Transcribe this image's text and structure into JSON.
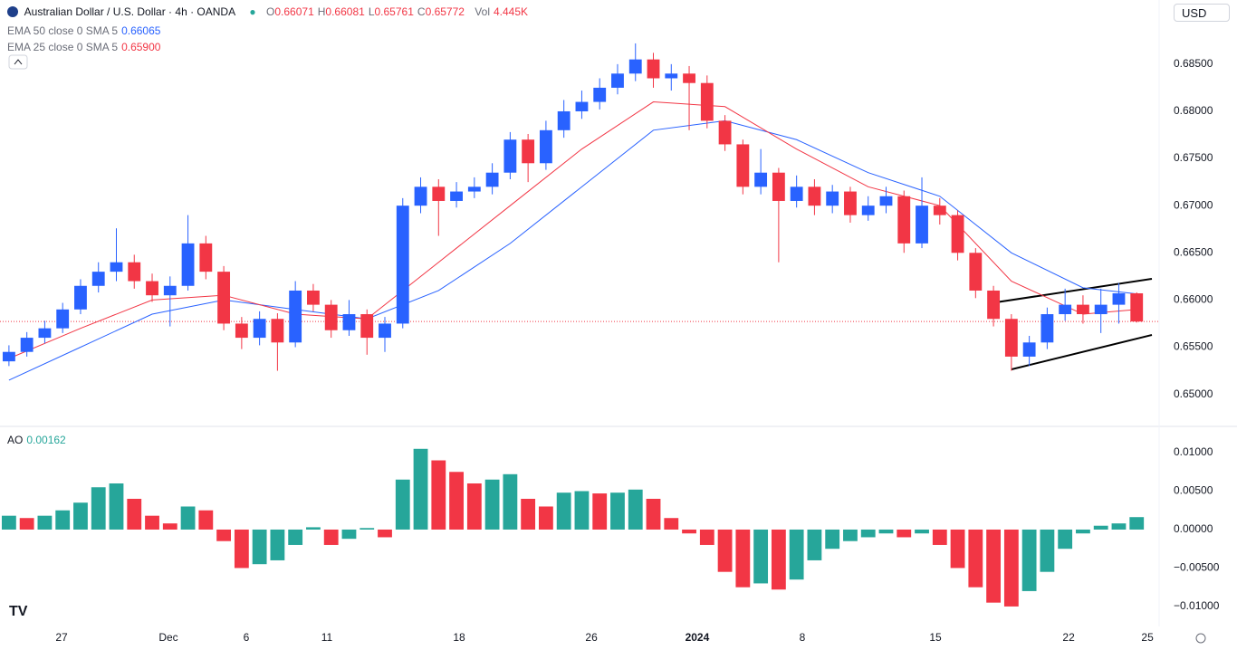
{
  "chart_data": {
    "type": "candlestick",
    "title": "Australian Dollar / U.S. Dollar · 4h · OANDA",
    "ohlc_letters": [
      "O",
      "H",
      "L",
      "C"
    ],
    "volume_name": "Vol",
    "volume_label": "4.445K",
    "currency": "USD",
    "up_color": "#2962ff",
    "down_color": "#f23645",
    "xlim": [
      -0.5,
      64
    ],
    "xticks": [
      {
        "value": 2.94,
        "label": "27"
      },
      {
        "value": 8.91,
        "label": "Dec"
      },
      {
        "value": 13.26,
        "label": "6"
      },
      {
        "value": 17.76,
        "label": "11"
      },
      {
        "value": 25.15,
        "label": "18"
      },
      {
        "value": 32.54,
        "label": "26"
      },
      {
        "value": 38.45,
        "label": "2024",
        "bold": true
      },
      {
        "value": 44.32,
        "label": "8"
      },
      {
        "value": 51.76,
        "label": "15"
      },
      {
        "value": 59.2,
        "label": "22"
      },
      {
        "value": 63.6,
        "label": "25"
      }
    ],
    "ylim": [
      0.6467,
      0.6918
    ],
    "yticks": [
      {
        "value": 0.65,
        "label": "0.65000"
      },
      {
        "value": 0.655,
        "label": "0.65500"
      },
      {
        "value": 0.66,
        "label": "0.66000"
      },
      {
        "value": 0.665,
        "label": "0.66500"
      },
      {
        "value": 0.67,
        "label": "0.67000"
      },
      {
        "value": 0.675,
        "label": "0.67500"
      },
      {
        "value": 0.68,
        "label": "0.68000"
      },
      {
        "value": 0.685,
        "label": "0.68500"
      }
    ],
    "grid": false,
    "candles": {
      "open": [
        0.6535,
        0.6545,
        0.656,
        0.657,
        0.659,
        0.6615,
        0.663,
        0.664,
        0.662,
        0.6605,
        0.6615,
        0.666,
        0.663,
        0.6575,
        0.656,
        0.658,
        0.6555,
        0.661,
        0.6595,
        0.6568,
        0.6585,
        0.656,
        0.6575,
        0.67,
        0.672,
        0.6705,
        0.6715,
        0.672,
        0.6735,
        0.677,
        0.6745,
        0.678,
        0.68,
        0.681,
        0.6825,
        0.684,
        0.6855,
        0.6835,
        0.684,
        0.683,
        0.679,
        0.6765,
        0.672,
        0.6735,
        0.6705,
        0.672,
        0.67,
        0.6715,
        0.669,
        0.67,
        0.671,
        0.666,
        0.67,
        0.669,
        0.665,
        0.661,
        0.658,
        0.654,
        0.6555,
        0.6585,
        0.6595,
        0.6585,
        0.6595,
        0.66071
      ],
      "high": [
        0.6552,
        0.6566,
        0.6578,
        0.6597,
        0.6622,
        0.664,
        0.6676,
        0.6648,
        0.6628,
        0.6625,
        0.669,
        0.6668,
        0.6636,
        0.6582,
        0.6588,
        0.6586,
        0.662,
        0.6617,
        0.66,
        0.66,
        0.659,
        0.6582,
        0.6708,
        0.673,
        0.6728,
        0.6725,
        0.673,
        0.6745,
        0.6778,
        0.6776,
        0.679,
        0.6812,
        0.6822,
        0.6835,
        0.685,
        0.6872,
        0.6862,
        0.685,
        0.6848,
        0.6838,
        0.6796,
        0.677,
        0.676,
        0.674,
        0.6732,
        0.6728,
        0.6722,
        0.672,
        0.671,
        0.672,
        0.6716,
        0.673,
        0.6708,
        0.6695,
        0.6655,
        0.6615,
        0.6585,
        0.6562,
        0.6592,
        0.6612,
        0.6605,
        0.6612,
        0.6618,
        0.66081
      ],
      "low": [
        0.653,
        0.654,
        0.6554,
        0.6565,
        0.6585,
        0.6608,
        0.662,
        0.6612,
        0.6598,
        0.6572,
        0.661,
        0.6622,
        0.6568,
        0.6548,
        0.6552,
        0.6525,
        0.655,
        0.6588,
        0.656,
        0.6562,
        0.6542,
        0.6545,
        0.657,
        0.6692,
        0.6668,
        0.6698,
        0.6708,
        0.6712,
        0.6728,
        0.6725,
        0.6738,
        0.6772,
        0.6792,
        0.6802,
        0.6818,
        0.6832,
        0.6825,
        0.6822,
        0.678,
        0.6782,
        0.6758,
        0.6712,
        0.6712,
        0.664,
        0.6698,
        0.669,
        0.6692,
        0.6682,
        0.6684,
        0.6692,
        0.665,
        0.6655,
        0.668,
        0.6642,
        0.6602,
        0.6572,
        0.6525,
        0.653,
        0.6548,
        0.6578,
        0.6575,
        0.6565,
        0.6575,
        0.65761
      ],
      "close": [
        0.6545,
        0.656,
        0.657,
        0.659,
        0.6615,
        0.663,
        0.664,
        0.662,
        0.6605,
        0.6615,
        0.666,
        0.663,
        0.6575,
        0.656,
        0.658,
        0.6555,
        0.661,
        0.6595,
        0.6568,
        0.6585,
        0.656,
        0.6575,
        0.67,
        0.672,
        0.6705,
        0.6715,
        0.672,
        0.6735,
        0.677,
        0.6745,
        0.678,
        0.68,
        0.681,
        0.6825,
        0.684,
        0.6855,
        0.6835,
        0.684,
        0.683,
        0.679,
        0.6765,
        0.672,
        0.6735,
        0.6705,
        0.672,
        0.67,
        0.6715,
        0.669,
        0.67,
        0.671,
        0.666,
        0.67,
        0.669,
        0.665,
        0.661,
        0.658,
        0.654,
        0.6555,
        0.6585,
        0.6595,
        0.6585,
        0.6595,
        0.66071,
        0.65772
      ]
    },
    "indicators": [
      {
        "name": "EMA 50 close 0 SMA 5",
        "color": "#2962ff",
        "x": [
          0,
          4,
          8,
          12,
          16,
          20,
          24,
          28,
          32,
          36,
          40,
          44,
          48,
          52,
          56,
          60,
          63
        ],
        "values": [
          0.6515,
          0.655,
          0.6585,
          0.66,
          0.659,
          0.658,
          0.661,
          0.666,
          0.672,
          0.678,
          0.679,
          0.677,
          0.6735,
          0.671,
          0.665,
          0.6613,
          0.66065
        ]
      },
      {
        "name": "EMA 25 close 0 SMA 5",
        "color": "#f23645",
        "last_label": "0.65900",
        "x": [
          0,
          4,
          8,
          12,
          16,
          20,
          24,
          28,
          32,
          36,
          40,
          44,
          48,
          52,
          56,
          60,
          63
        ],
        "values": [
          0.6538,
          0.657,
          0.66,
          0.6605,
          0.6585,
          0.658,
          0.664,
          0.67,
          0.676,
          0.681,
          0.6805,
          0.676,
          0.672,
          0.67,
          0.662,
          0.6585,
          0.659
        ]
      }
    ],
    "ao": {
      "name": "AO",
      "up_color": "#26a69a",
      "down_color": "#f23645",
      "ylim": [
        -0.0126,
        0.0133
      ],
      "yticks": [
        {
          "value": 0.01,
          "label": "0.01000"
        },
        {
          "value": 0.005,
          "label": "0.00500"
        },
        {
          "value": 0,
          "label": "0.00000"
        },
        {
          "value": -0.005,
          "label": "−0.00500"
        },
        {
          "value": -0.01,
          "label": "−0.01000"
        }
      ],
      "values": [
        0.0018,
        0.0015,
        0.0018,
        0.0025,
        0.0035,
        0.0055,
        0.006,
        0.004,
        0.0018,
        0.0008,
        0.003,
        0.0025,
        -0.0015,
        -0.005,
        -0.0045,
        -0.004,
        -0.002,
        0.0003,
        -0.002,
        -0.0012,
        0.0002,
        -0.001,
        0.0065,
        0.0105,
        0.009,
        0.0075,
        0.006,
        0.0065,
        0.0072,
        0.004,
        0.003,
        0.0048,
        0.005,
        0.0047,
        0.0048,
        0.0052,
        0.004,
        0.0015,
        -0.0005,
        -0.002,
        -0.0055,
        -0.0075,
        -0.007,
        -0.0078,
        -0.0065,
        -0.004,
        -0.0025,
        -0.0015,
        -0.001,
        -0.0005,
        -0.001,
        -0.0005,
        -0.002,
        -0.005,
        -0.0075,
        -0.0095,
        -0.01,
        -0.008,
        -0.0055,
        -0.0025,
        -0.0005,
        0.0005,
        0.0008,
        0.00162
      ]
    }
  }
}
